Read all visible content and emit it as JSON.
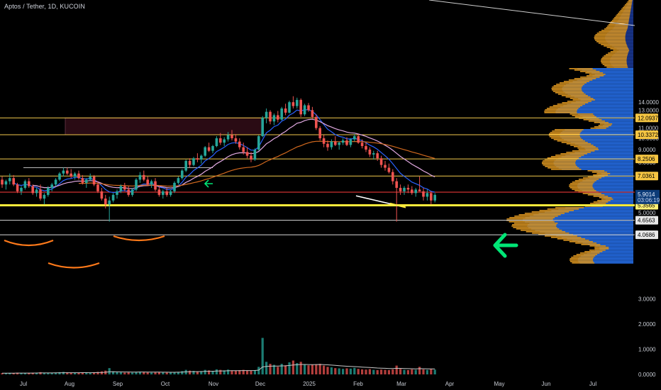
{
  "symbol": {
    "title": "Aptos / Tether, 1D, KUCOIN"
  },
  "colors": {
    "background": "#000000",
    "up": "#26a69a",
    "down": "#ef5350",
    "ema_fast": "#2962ff",
    "ema_slow": "#e0a8e0",
    "ema_long": "#d2691e",
    "level_line": "#f2c94c",
    "support_line": "#ffeb3b",
    "resistance_line": "#ff3b3b",
    "zone_fill": "#2a0b14",
    "volume_profile_upper": "#1e3fa8",
    "volume_profile_lower": "#2979ff",
    "volume_profile_orange": "#f5a623",
    "arrow_green": "#00e676",
    "annotation_orange": "#ff7a1a"
  },
  "chart_data": {
    "type": "candlestick",
    "title": "Aptos / Tether, 1D, KUCOIN",
    "x_tick_labels": [
      "Jul",
      "Aug",
      "Sep",
      "Oct",
      "Nov",
      "Dec",
      "2025",
      "Feb",
      "Mar",
      "Apr",
      "May",
      "Jun",
      "Jul"
    ],
    "y_tick_labels": [
      "14.0000",
      "13.0000",
      "11.0000",
      "10.0000",
      "9.0000",
      "8.0000",
      "5.0000"
    ],
    "ylim": [
      3.5,
      14.8
    ],
    "price_scale": "log",
    "price_levels": [
      {
        "label": "12.0937",
        "value": 12.0937
      },
      {
        "label": "10.3372",
        "value": 10.3372
      },
      {
        "label": "8.2506",
        "value": 8.2506
      },
      {
        "label": "7.0361",
        "value": 7.0361
      },
      {
        "label": "5.3565",
        "value": 5.3565
      },
      {
        "label": "4.6563",
        "value": 4.6563
      },
      {
        "label": "4.0686",
        "value": 4.0686
      }
    ],
    "last_price": {
      "label": "5.9014",
      "countdown": "03:06:19",
      "value": 5.9014
    },
    "volume_axis": {
      "labels": [
        "3.0000",
        "2.0000",
        "1.0000",
        "0.0000"
      ],
      "values": [
        3,
        2,
        1,
        0
      ],
      "ylim": [
        0,
        3.6
      ]
    },
    "candles_ohlc": [
      [
        6.8,
        7.0,
        6.3,
        6.5
      ],
      [
        6.5,
        6.8,
        6.2,
        6.7
      ],
      [
        6.7,
        7.2,
        6.5,
        6.9
      ],
      [
        6.9,
        7.1,
        6.4,
        6.5
      ],
      [
        6.5,
        6.6,
        6.0,
        6.1
      ],
      [
        6.1,
        6.4,
        5.9,
        6.3
      ],
      [
        6.3,
        6.8,
        6.2,
        6.7
      ],
      [
        6.7,
        6.9,
        6.3,
        6.4
      ],
      [
        6.4,
        6.5,
        5.9,
        6.0
      ],
      [
        6.0,
        6.3,
        5.8,
        6.2
      ],
      [
        6.2,
        6.5,
        5.6,
        5.7
      ],
      [
        5.7,
        6.0,
        5.4,
        5.9
      ],
      [
        5.9,
        6.4,
        5.8,
        6.3
      ],
      [
        6.3,
        6.6,
        6.1,
        6.5
      ],
      [
        6.5,
        6.9,
        6.4,
        6.8
      ],
      [
        6.8,
        7.3,
        6.7,
        7.2
      ],
      [
        7.2,
        7.6,
        7.0,
        7.4
      ],
      [
        7.4,
        7.6,
        7.1,
        7.2
      ],
      [
        7.2,
        7.5,
        6.9,
        7.0
      ],
      [
        7.0,
        7.3,
        6.8,
        7.2
      ],
      [
        7.2,
        7.4,
        6.8,
        6.9
      ],
      [
        6.9,
        7.1,
        6.5,
        6.6
      ],
      [
        6.6,
        6.9,
        6.3,
        6.8
      ],
      [
        6.8,
        7.2,
        6.7,
        7.0
      ],
      [
        7.0,
        7.1,
        6.4,
        6.5
      ],
      [
        6.5,
        6.7,
        6.0,
        6.1
      ],
      [
        6.1,
        6.3,
        5.6,
        5.7
      ],
      [
        5.7,
        5.9,
        5.2,
        5.4
      ],
      [
        5.4,
        5.8,
        4.6,
        5.6
      ],
      [
        5.6,
        6.0,
        5.5,
        5.9
      ],
      [
        5.9,
        6.2,
        5.7,
        6.1
      ],
      [
        6.1,
        6.5,
        6.0,
        6.4
      ],
      [
        6.4,
        6.6,
        6.1,
        6.2
      ],
      [
        6.2,
        6.4,
        5.8,
        5.9
      ],
      [
        5.9,
        6.3,
        5.8,
        6.2
      ],
      [
        6.2,
        6.9,
        6.1,
        6.8
      ],
      [
        6.8,
        7.3,
        6.6,
        7.1
      ],
      [
        7.1,
        7.4,
        6.7,
        6.8
      ],
      [
        6.8,
        7.0,
        6.4,
        6.5
      ],
      [
        6.5,
        6.8,
        6.3,
        6.7
      ],
      [
        6.7,
        6.9,
        6.1,
        6.2
      ],
      [
        6.2,
        6.4,
        5.8,
        5.9
      ],
      [
        5.9,
        6.2,
        5.7,
        6.1
      ],
      [
        6.1,
        6.3,
        5.8,
        5.9
      ],
      [
        5.9,
        6.2,
        5.8,
        6.1
      ],
      [
        6.1,
        6.7,
        6.0,
        6.6
      ],
      [
        6.6,
        7.0,
        6.5,
        6.9
      ],
      [
        6.9,
        7.5,
        6.8,
        7.4
      ],
      [
        7.4,
        8.2,
        7.3,
        8.1
      ],
      [
        8.1,
        8.3,
        7.6,
        7.8
      ],
      [
        7.8,
        8.4,
        7.7,
        8.3
      ],
      [
        8.3,
        8.7,
        8.0,
        8.2
      ],
      [
        8.2,
        8.6,
        7.9,
        8.5
      ],
      [
        8.5,
        9.3,
        8.4,
        9.2
      ],
      [
        9.2,
        9.6,
        8.8,
        8.9
      ],
      [
        8.9,
        9.4,
        8.7,
        9.3
      ],
      [
        9.3,
        10.2,
        9.2,
        10.0
      ],
      [
        10.0,
        10.5,
        9.4,
        9.6
      ],
      [
        9.6,
        10.1,
        9.3,
        9.9
      ],
      [
        9.9,
        10.6,
        9.7,
        10.3
      ],
      [
        10.3,
        10.8,
        9.8,
        10.0
      ],
      [
        10.0,
        10.4,
        9.5,
        9.7
      ],
      [
        9.7,
        10.0,
        9.0,
        9.2
      ],
      [
        9.2,
        9.6,
        8.6,
        8.8
      ],
      [
        8.8,
        9.2,
        8.3,
        8.5
      ],
      [
        8.5,
        8.8,
        8.0,
        8.2
      ],
      [
        8.2,
        9.1,
        8.1,
        9.0
      ],
      [
        9.0,
        10.3,
        8.9,
        10.2
      ],
      [
        10.2,
        12.3,
        10.1,
        12.1
      ],
      [
        12.1,
        13.2,
        11.5,
        12.8
      ],
      [
        12.8,
        13.0,
        11.4,
        11.7
      ],
      [
        11.7,
        12.6,
        11.3,
        12.4
      ],
      [
        12.4,
        12.9,
        11.6,
        11.9
      ],
      [
        11.9,
        13.4,
        11.8,
        13.2
      ],
      [
        13.2,
        13.8,
        12.4,
        12.7
      ],
      [
        12.7,
        14.2,
        12.6,
        14.0
      ],
      [
        14.0,
        14.8,
        13.2,
        13.5
      ],
      [
        13.5,
        14.6,
        13.2,
        14.3
      ],
      [
        14.3,
        14.5,
        12.2,
        12.5
      ],
      [
        12.5,
        13.8,
        12.3,
        13.6
      ],
      [
        13.6,
        13.9,
        12.8,
        13.0
      ],
      [
        13.0,
        13.4,
        12.0,
        12.2
      ],
      [
        12.2,
        12.5,
        10.8,
        11.0
      ],
      [
        11.0,
        11.2,
        9.8,
        10.0
      ],
      [
        10.0,
        10.3,
        9.2,
        9.5
      ],
      [
        9.5,
        9.8,
        8.9,
        9.2
      ],
      [
        9.2,
        9.9,
        9.0,
        9.7
      ],
      [
        9.7,
        10.2,
        9.3,
        9.4
      ],
      [
        9.4,
        9.7,
        9.0,
        9.6
      ],
      [
        9.6,
        10.0,
        9.4,
        9.8
      ],
      [
        9.8,
        10.1,
        9.3,
        9.4
      ],
      [
        9.4,
        10.0,
        9.2,
        9.9
      ],
      [
        9.9,
        10.4,
        9.7,
        10.2
      ],
      [
        10.2,
        10.4,
        9.5,
        9.6
      ],
      [
        9.6,
        9.9,
        9.1,
        9.3
      ],
      [
        9.3,
        9.6,
        8.8,
        9.0
      ],
      [
        9.0,
        9.2,
        8.4,
        8.6
      ],
      [
        8.6,
        8.9,
        8.2,
        8.7
      ],
      [
        8.7,
        8.9,
        8.1,
        8.3
      ],
      [
        8.3,
        8.5,
        7.6,
        7.8
      ],
      [
        7.8,
        8.1,
        7.4,
        7.6
      ],
      [
        7.6,
        7.9,
        7.2,
        7.3
      ],
      [
        7.3,
        7.5,
        6.5,
        6.7
      ],
      [
        6.7,
        6.9,
        4.6,
        6.3
      ],
      [
        6.3,
        6.5,
        5.9,
        6.1
      ],
      [
        6.1,
        6.4,
        5.9,
        6.3
      ],
      [
        6.3,
        6.5,
        6.0,
        6.2
      ],
      [
        6.2,
        6.4,
        5.9,
        6.0
      ],
      [
        6.0,
        6.3,
        5.8,
        6.2
      ],
      [
        6.2,
        7.0,
        6.1,
        6.1
      ],
      [
        6.1,
        6.3,
        5.6,
        5.8
      ],
      [
        5.8,
        6.2,
        5.6,
        6.0
      ],
      [
        6.0,
        6.1,
        5.4,
        5.6
      ],
      [
        5.6,
        6.0,
        5.5,
        5.9
      ]
    ],
    "volumes": [
      0.05,
      0.05,
      0.06,
      0.05,
      0.07,
      0.05,
      0.05,
      0.06,
      0.07,
      0.06,
      0.09,
      0.07,
      0.06,
      0.06,
      0.07,
      0.09,
      0.1,
      0.08,
      0.07,
      0.06,
      0.07,
      0.08,
      0.07,
      0.06,
      0.08,
      0.1,
      0.12,
      0.15,
      0.25,
      0.12,
      0.09,
      0.08,
      0.07,
      0.08,
      0.07,
      0.1,
      0.11,
      0.09,
      0.08,
      0.07,
      0.08,
      0.09,
      0.08,
      0.07,
      0.07,
      0.09,
      0.1,
      0.13,
      0.18,
      0.15,
      0.14,
      0.12,
      0.13,
      0.18,
      0.16,
      0.14,
      0.2,
      0.18,
      0.16,
      0.19,
      0.16,
      0.15,
      0.17,
      0.18,
      0.16,
      0.15,
      0.17,
      0.3,
      1.45,
      0.5,
      0.42,
      0.38,
      0.3,
      0.42,
      0.36,
      0.48,
      0.55,
      0.45,
      0.5,
      0.4,
      0.36,
      0.38,
      0.4,
      0.42,
      0.35,
      0.3,
      0.28,
      0.25,
      0.24,
      0.22,
      0.24,
      0.23,
      0.26,
      0.22,
      0.2,
      0.19,
      0.21,
      0.18,
      0.17,
      0.19,
      0.18,
      0.17,
      0.2,
      0.35,
      0.22,
      0.18,
      0.17,
      0.2,
      0.18,
      0.3,
      0.2,
      0.18,
      0.22,
      0.19
    ],
    "annotations": [
      {
        "type": "horizontal_line",
        "color": "#ffeb3b",
        "value": 5.3565
      },
      {
        "type": "horizontal_line",
        "color": "#ff3b3b",
        "value": 6.05
      },
      {
        "type": "zone",
        "color": "#2a0b14",
        "from_value": 10.3372,
        "to_value": 12.0937
      },
      {
        "type": "arrow",
        "direction": "left",
        "color": "#00e676"
      }
    ]
  }
}
